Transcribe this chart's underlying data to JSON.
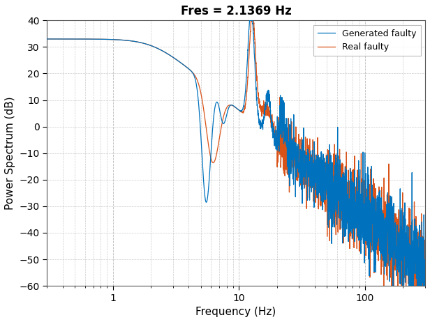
{
  "title": "Fres = 2.1369 Hz",
  "xlabel": "Frequency (Hz)",
  "ylabel": "Power Spectrum (dB)",
  "xlim_log": [
    0.3,
    300
  ],
  "ylim": [
    -60,
    40
  ],
  "yticks": [
    -60,
    -50,
    -40,
    -30,
    -20,
    -10,
    0,
    10,
    20,
    30,
    40
  ],
  "xticks": [
    1,
    10,
    100
  ],
  "xticklabels": [
    "1",
    "10",
    "100"
  ],
  "legend_labels": [
    "Generated faulty",
    "Real faulty"
  ],
  "line_colors": [
    "#0072BD",
    "#D95319"
  ],
  "background_color": "#ffffff",
  "grid_color": "#aaaaaa",
  "title_fontsize": 12,
  "label_fontsize": 11,
  "fres": 2.1369,
  "line_width": 0.9
}
